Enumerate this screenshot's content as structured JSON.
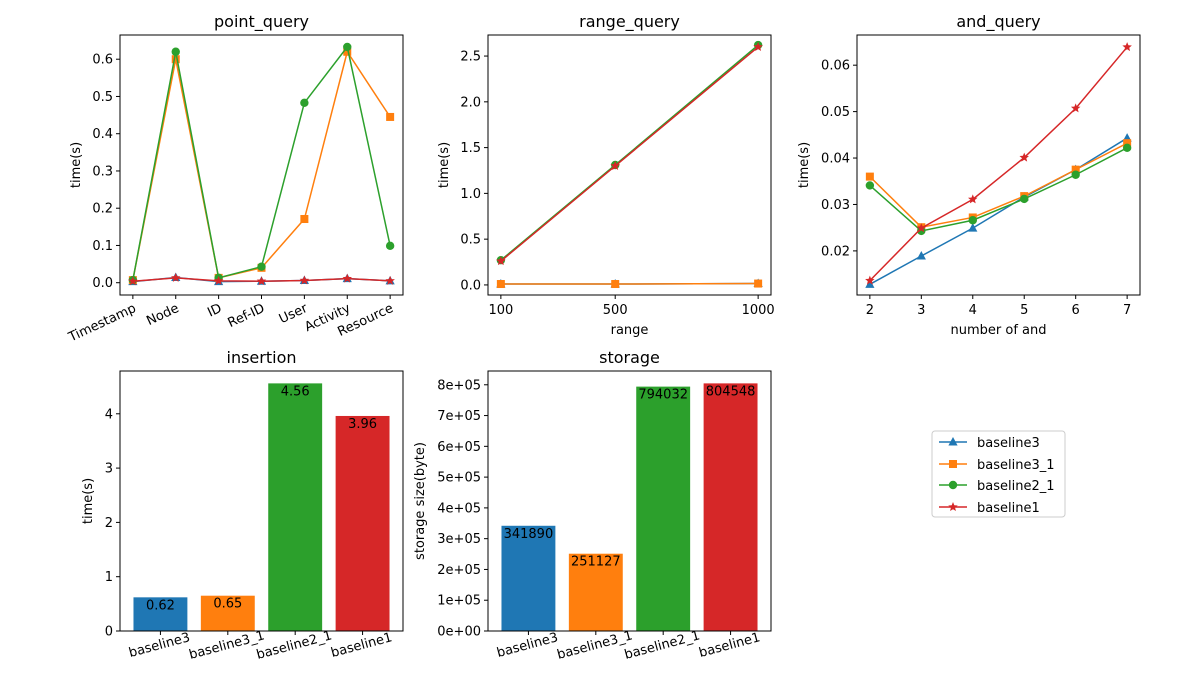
{
  "colors": {
    "baseline3": "#1f77b4",
    "baseline3_1": "#ff7f0e",
    "baseline2_1": "#2ca02c",
    "baseline1": "#d62728"
  },
  "legend": {
    "entries": [
      {
        "name": "baseline3",
        "marker": "triangle"
      },
      {
        "name": "baseline3_1",
        "marker": "square"
      },
      {
        "name": "baseline2_1",
        "marker": "circle"
      },
      {
        "name": "baseline1",
        "marker": "star"
      }
    ]
  },
  "chart_data": [
    {
      "id": "point_query",
      "type": "line",
      "title": "point_query",
      "xlabel": "",
      "ylabel": "time(s)",
      "categories": [
        "Timestamp",
        "Node",
        "ID",
        "Ref-ID",
        "User",
        "Activity",
        "Resource"
      ],
      "yticks": [
        "0.0",
        "0.1",
        "0.2",
        "0.3",
        "0.4",
        "0.5",
        "0.6"
      ],
      "ylim": [
        -0.033,
        0.665
      ],
      "series": [
        {
          "name": "baseline3",
          "values": [
            0.003,
            0.014,
            0.003,
            0.004,
            0.006,
            0.011,
            0.005
          ]
        },
        {
          "name": "baseline3_1",
          "values": [
            0.007,
            0.6,
            0.013,
            0.04,
            0.171,
            0.62,
            0.445
          ]
        },
        {
          "name": "baseline2_1",
          "values": [
            0.007,
            0.62,
            0.013,
            0.043,
            0.483,
            0.633,
            0.099
          ]
        },
        {
          "name": "baseline1",
          "values": [
            0.004,
            0.013,
            0.005,
            0.004,
            0.006,
            0.011,
            0.005
          ]
        }
      ]
    },
    {
      "id": "range_query",
      "type": "line",
      "title": "range_query",
      "xlabel": "range",
      "ylabel": "time(s)",
      "categories": [
        "100",
        "500",
        "1000"
      ],
      "x": [
        100,
        500,
        1000
      ],
      "xlim": [
        55,
        1045
      ],
      "yticks": [
        "0.0",
        "0.5",
        "1.0",
        "1.5",
        "2.0",
        "2.5"
      ],
      "ylim": [
        -0.11,
        2.73
      ],
      "series": [
        {
          "name": "baseline3",
          "values": [
            0.01,
            0.01,
            0.015
          ]
        },
        {
          "name": "baseline3_1",
          "values": [
            0.01,
            0.01,
            0.015
          ]
        },
        {
          "name": "baseline2_1",
          "values": [
            0.27,
            1.31,
            2.62
          ]
        },
        {
          "name": "baseline1",
          "values": [
            0.26,
            1.3,
            2.6
          ]
        }
      ]
    },
    {
      "id": "and_query",
      "type": "line",
      "title": "and_query",
      "xlabel": "number of and",
      "ylabel": "time(s)",
      "categories": [
        "2",
        "3",
        "4",
        "5",
        "6",
        "7"
      ],
      "x": [
        2,
        3,
        4,
        5,
        6,
        7
      ],
      "xlim": [
        1.75,
        7.25
      ],
      "yticks": [
        "0.02",
        "0.03",
        "0.04",
        "0.05",
        "0.06"
      ],
      "ylim": [
        0.0105,
        0.0665
      ],
      "series": [
        {
          "name": "baseline3",
          "values": [
            0.0128,
            0.0189,
            0.0249,
            0.0316,
            0.0375,
            0.0443
          ]
        },
        {
          "name": "baseline3_1",
          "values": [
            0.036,
            0.0251,
            0.0272,
            0.0318,
            0.0375,
            0.0432
          ]
        },
        {
          "name": "baseline2_1",
          "values": [
            0.0341,
            0.0243,
            0.0266,
            0.0312,
            0.0364,
            0.0422
          ]
        },
        {
          "name": "baseline1",
          "values": [
            0.0136,
            0.0249,
            0.0311,
            0.0401,
            0.0507,
            0.0639
          ]
        }
      ]
    },
    {
      "id": "insertion",
      "type": "bar",
      "title": "insertion",
      "xlabel": "",
      "ylabel": "time(s)",
      "categories": [
        "baseline3",
        "baseline3_1",
        "baseline2_1",
        "baseline1"
      ],
      "values": [
        0.62,
        0.65,
        4.56,
        3.96
      ],
      "data_labels": [
        "0.62",
        "0.65",
        "4.56",
        "3.96"
      ],
      "yticks": [
        "0",
        "1",
        "2",
        "3",
        "4"
      ],
      "ylim": [
        0,
        4.788
      ]
    },
    {
      "id": "storage",
      "type": "bar",
      "title": "storage",
      "xlabel": "",
      "ylabel": "storage size(byte)",
      "categories": [
        "baseline3",
        "baseline3_1",
        "baseline2_1",
        "baseline1"
      ],
      "values": [
        341890,
        251127,
        794032,
        804548
      ],
      "data_labels": [
        "341890",
        "251127",
        "794032",
        "804548"
      ],
      "yticks": [
        "0e+00",
        "1e+05",
        "2e+05",
        "3e+05",
        "4e+05",
        "5e+05",
        "6e+05",
        "7e+05",
        "8e+05"
      ],
      "ylim": [
        0,
        844775
      ]
    }
  ]
}
